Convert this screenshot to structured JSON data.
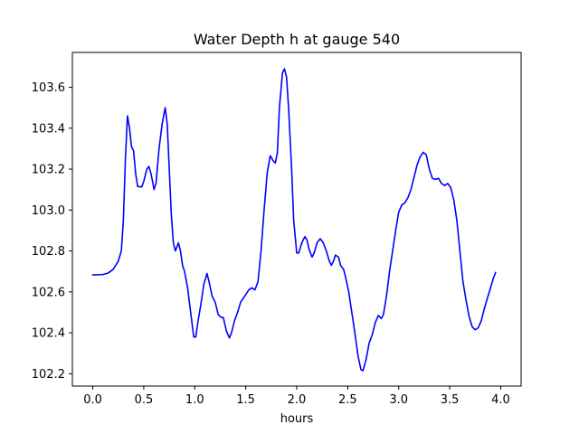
{
  "chart_data": {
    "type": "line",
    "title": "Water Depth h at gauge 540",
    "xlabel": "hours",
    "ylabel": "",
    "xlim": [
      -0.2,
      4.2
    ],
    "ylim": [
      102.14,
      103.77
    ],
    "xticks": [
      0.0,
      0.5,
      1.0,
      1.5,
      2.0,
      2.5,
      3.0,
      3.5,
      4.0
    ],
    "xtick_labels": [
      "0.0",
      "0.5",
      "1.0",
      "1.5",
      "2.0",
      "2.5",
      "3.0",
      "3.5",
      "4.0"
    ],
    "yticks": [
      102.2,
      102.4,
      102.6,
      102.8,
      103.0,
      103.2,
      103.4,
      103.6
    ],
    "ytick_labels": [
      "102.2",
      "102.4",
      "102.6",
      "102.8",
      "103.0",
      "103.2",
      "103.4",
      "103.6"
    ],
    "grid": false,
    "legend": "none",
    "series": [
      {
        "color": "#0000ff",
        "points": [
          [
            0.0,
            102.683
          ],
          [
            0.1,
            102.685
          ],
          [
            0.15,
            102.692
          ],
          [
            0.2,
            102.71
          ],
          [
            0.25,
            102.75
          ],
          [
            0.28,
            102.8
          ],
          [
            0.3,
            102.95
          ],
          [
            0.32,
            103.25
          ],
          [
            0.34,
            103.46
          ],
          [
            0.36,
            103.4
          ],
          [
            0.38,
            103.31
          ],
          [
            0.4,
            103.29
          ],
          [
            0.42,
            103.18
          ],
          [
            0.44,
            103.115
          ],
          [
            0.48,
            103.113
          ],
          [
            0.5,
            103.14
          ],
          [
            0.53,
            103.2
          ],
          [
            0.55,
            103.213
          ],
          [
            0.57,
            103.18
          ],
          [
            0.59,
            103.13
          ],
          [
            0.6,
            103.1
          ],
          [
            0.62,
            103.13
          ],
          [
            0.65,
            103.3
          ],
          [
            0.68,
            103.42
          ],
          [
            0.71,
            103.5
          ],
          [
            0.73,
            103.42
          ],
          [
            0.75,
            103.2
          ],
          [
            0.77,
            102.98
          ],
          [
            0.79,
            102.84
          ],
          [
            0.81,
            102.8
          ],
          [
            0.84,
            102.84
          ],
          [
            0.86,
            102.8
          ],
          [
            0.88,
            102.73
          ],
          [
            0.9,
            102.7
          ],
          [
            0.93,
            102.62
          ],
          [
            0.96,
            102.5
          ],
          [
            0.99,
            102.38
          ],
          [
            1.01,
            102.38
          ],
          [
            1.03,
            102.45
          ],
          [
            1.06,
            102.54
          ],
          [
            1.09,
            102.64
          ],
          [
            1.12,
            102.69
          ],
          [
            1.14,
            102.65
          ],
          [
            1.17,
            102.58
          ],
          [
            1.2,
            102.55
          ],
          [
            1.23,
            102.49
          ],
          [
            1.26,
            102.475
          ],
          [
            1.28,
            102.475
          ],
          [
            1.31,
            102.41
          ],
          [
            1.34,
            102.375
          ],
          [
            1.36,
            102.4
          ],
          [
            1.39,
            102.46
          ],
          [
            1.42,
            102.5
          ],
          [
            1.45,
            102.55
          ],
          [
            1.49,
            102.58
          ],
          [
            1.53,
            102.61
          ],
          [
            1.56,
            102.62
          ],
          [
            1.59,
            102.61
          ],
          [
            1.62,
            102.65
          ],
          [
            1.65,
            102.8
          ],
          [
            1.68,
            103.0
          ],
          [
            1.71,
            103.18
          ],
          [
            1.74,
            103.265
          ],
          [
            1.77,
            103.24
          ],
          [
            1.79,
            103.23
          ],
          [
            1.81,
            103.28
          ],
          [
            1.83,
            103.5
          ],
          [
            1.86,
            103.67
          ],
          [
            1.88,
            103.69
          ],
          [
            1.9,
            103.65
          ],
          [
            1.92,
            103.5
          ],
          [
            1.95,
            103.2
          ],
          [
            1.97,
            102.95
          ],
          [
            2.0,
            102.79
          ],
          [
            2.02,
            102.79
          ],
          [
            2.05,
            102.84
          ],
          [
            2.08,
            102.87
          ],
          [
            2.1,
            102.855
          ],
          [
            2.12,
            102.81
          ],
          [
            2.15,
            102.77
          ],
          [
            2.17,
            102.79
          ],
          [
            2.2,
            102.84
          ],
          [
            2.23,
            102.86
          ],
          [
            2.26,
            102.84
          ],
          [
            2.29,
            102.8
          ],
          [
            2.32,
            102.75
          ],
          [
            2.34,
            102.73
          ],
          [
            2.36,
            102.75
          ],
          [
            2.38,
            102.78
          ],
          [
            2.41,
            102.77
          ],
          [
            2.43,
            102.73
          ],
          [
            2.46,
            102.71
          ],
          [
            2.48,
            102.67
          ],
          [
            2.51,
            102.6
          ],
          [
            2.54,
            102.5
          ],
          [
            2.57,
            102.4
          ],
          [
            2.6,
            102.29
          ],
          [
            2.63,
            102.22
          ],
          [
            2.65,
            102.215
          ],
          [
            2.68,
            102.27
          ],
          [
            2.71,
            102.35
          ],
          [
            2.74,
            102.39
          ],
          [
            2.77,
            102.45
          ],
          [
            2.8,
            102.485
          ],
          [
            2.83,
            102.47
          ],
          [
            2.85,
            102.49
          ],
          [
            2.88,
            102.58
          ],
          [
            2.91,
            102.7
          ],
          [
            2.94,
            102.8
          ],
          [
            2.97,
            102.9
          ],
          [
            3.0,
            102.99
          ],
          [
            3.03,
            103.025
          ],
          [
            3.06,
            103.035
          ],
          [
            3.09,
            103.06
          ],
          [
            3.12,
            103.1
          ],
          [
            3.15,
            103.16
          ],
          [
            3.18,
            103.22
          ],
          [
            3.21,
            103.26
          ],
          [
            3.24,
            103.282
          ],
          [
            3.27,
            103.27
          ],
          [
            3.3,
            103.2
          ],
          [
            3.33,
            103.155
          ],
          [
            3.36,
            103.15
          ],
          [
            3.39,
            103.155
          ],
          [
            3.42,
            103.13
          ],
          [
            3.45,
            103.12
          ],
          [
            3.48,
            103.13
          ],
          [
            3.51,
            103.11
          ],
          [
            3.54,
            103.05
          ],
          [
            3.57,
            102.95
          ],
          [
            3.6,
            102.8
          ],
          [
            3.63,
            102.65
          ],
          [
            3.66,
            102.56
          ],
          [
            3.69,
            102.48
          ],
          [
            3.72,
            102.43
          ],
          [
            3.75,
            102.415
          ],
          [
            3.78,
            102.425
          ],
          [
            3.81,
            102.46
          ],
          [
            3.84,
            102.52
          ],
          [
            3.87,
            102.57
          ],
          [
            3.9,
            102.62
          ],
          [
            3.93,
            102.67
          ],
          [
            3.95,
            102.695
          ]
        ]
      }
    ]
  }
}
